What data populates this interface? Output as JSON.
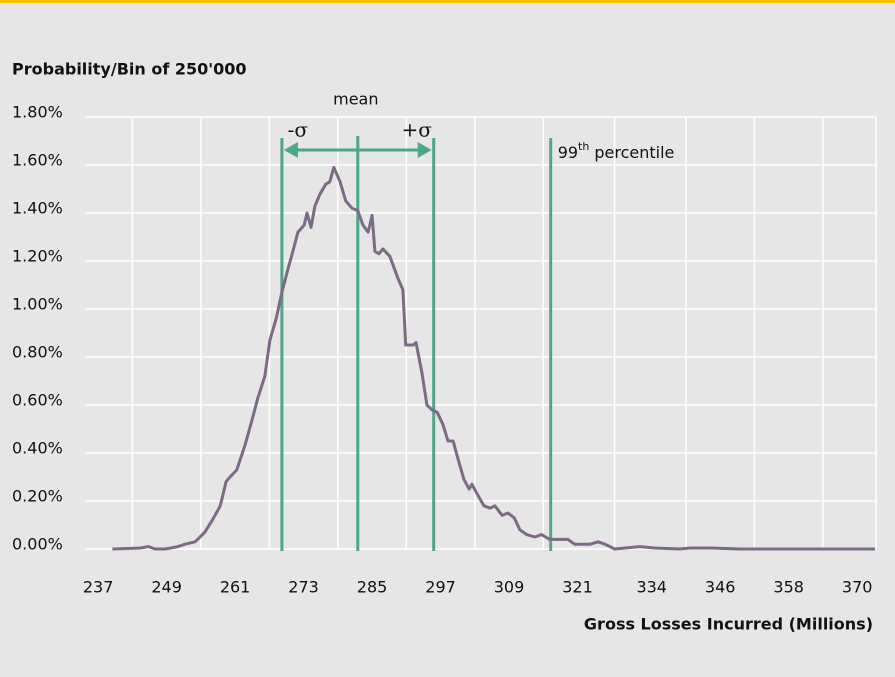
{
  "chart_data": {
    "type": "line",
    "title": "Probability/Bin of 250'000",
    "x_label": "Gross Losses Incurred (Millions)",
    "color": "#7d6a85",
    "marker_color": "#4fa58a",
    "grid": true,
    "xlim": [
      234.7,
      373.3
    ],
    "xticks": [
      237,
      249,
      261,
      273,
      285,
      297,
      309,
      321,
      334,
      346,
      358,
      370
    ],
    "ylim": [
      0,
      1.8
    ],
    "yticks": [
      {
        "value": 0,
        "label": "0.00%"
      },
      {
        "value": 0.2,
        "label": "0.20%"
      },
      {
        "value": 0.4,
        "label": "0.40%"
      },
      {
        "value": 0.6,
        "label": "0.60%"
      },
      {
        "value": 0.8,
        "label": "0.80%"
      },
      {
        "value": 1.0,
        "label": "1.00%"
      },
      {
        "value": 1.2,
        "label": "1.20%"
      },
      {
        "value": 1.4,
        "label": "1.40%"
      },
      {
        "value": 1.6,
        "label": "1.60%"
      },
      {
        "value": 1.8,
        "label": "1.80%"
      }
    ],
    "x": [
      239.5,
      244.4,
      245.8,
      247.0,
      248.7,
      251.0,
      252.2,
      254.0,
      255.7,
      257.0,
      258.4,
      259.4,
      260.1,
      261.3,
      262.7,
      264.0,
      265.0,
      266.2,
      267.1,
      268.2,
      269.2,
      270.3,
      271.0,
      272.0,
      273.1,
      273.6,
      274.3,
      275.0,
      275.9,
      276.9,
      277.6,
      278.3,
      279.4,
      280.4,
      281.5,
      282.5,
      283.4,
      284.3,
      285.0,
      285.5,
      286.2,
      286.9,
      288.1,
      289.5,
      290.4,
      290.9,
      292.2,
      292.7,
      293.7,
      294.6,
      295.5,
      296.4,
      297.4,
      298.3,
      299.2,
      300.0,
      301.1,
      302.0,
      302.5,
      303.4,
      304.6,
      305.7,
      306.5,
      307.8,
      308.8,
      309.9,
      310.9,
      312.1,
      313.5,
      314.7,
      316.1,
      317.9,
      319.3,
      320.5,
      323.2,
      324.6,
      325.8,
      327.5,
      331.9,
      334.5,
      338.9,
      340.7,
      344.5,
      349.4,
      373.1
    ],
    "values": [
      0,
      0.004,
      0.01,
      0,
      0,
      0.01,
      0.02,
      0.03,
      0.07,
      0.12,
      0.18,
      0.28,
      0.3,
      0.33,
      0.43,
      0.54,
      0.63,
      0.72,
      0.87,
      0.96,
      1.07,
      1.17,
      1.23,
      1.32,
      1.35,
      1.4,
      1.34,
      1.43,
      1.48,
      1.52,
      1.53,
      1.59,
      1.53,
      1.45,
      1.42,
      1.41,
      1.35,
      1.32,
      1.39,
      1.24,
      1.23,
      1.25,
      1.22,
      1.13,
      1.08,
      0.85,
      0.85,
      0.86,
      0.74,
      0.6,
      0.58,
      0.57,
      0.52,
      0.45,
      0.45,
      0.38,
      0.29,
      0.25,
      0.27,
      0.23,
      0.18,
      0.17,
      0.18,
      0.14,
      0.15,
      0.13,
      0.08,
      0.06,
      0.05,
      0.06,
      0.04,
      0.04,
      0.04,
      0.02,
      0.02,
      0.03,
      0.02,
      0,
      0.01,
      0.004,
      0,
      0.004,
      0.004,
      0,
      0
    ],
    "markers": [
      {
        "label": "-σ",
        "x": 269.2
      },
      {
        "label": "mean",
        "x": 282.5
      },
      {
        "label": "+σ",
        "x": 295.8
      },
      {
        "label_number": "99",
        "label_sup": "th",
        "label_rest": "percentile",
        "x": 316.3
      }
    ]
  }
}
